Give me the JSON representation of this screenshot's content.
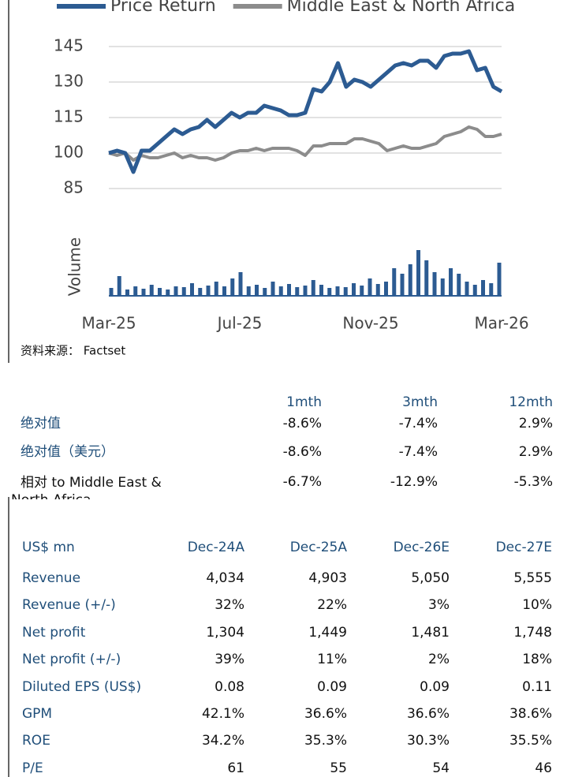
{
  "chart_data": [
    {
      "type": "line",
      "categories": [
        "Mar-25",
        null,
        null,
        null,
        null,
        null,
        null,
        null,
        null,
        null,
        null,
        null,
        null,
        null,
        null,
        null,
        "Jul-25",
        null,
        null,
        null,
        null,
        null,
        null,
        null,
        null,
        null,
        null,
        null,
        null,
        null,
        null,
        null,
        "Nov-25",
        null,
        null,
        null,
        null,
        null,
        null,
        null,
        null,
        null,
        null,
        null,
        null,
        null,
        null,
        null,
        "Mar-26"
      ],
      "series": [
        {
          "name": "Price Return",
          "color": "#2c5b92",
          "values": [
            100,
            101,
            100,
            92,
            101,
            101,
            104,
            107,
            110,
            108,
            110,
            111,
            114,
            111,
            114,
            117,
            115,
            117,
            117,
            120,
            119,
            118,
            116,
            116,
            117,
            127,
            126,
            130,
            138,
            128,
            131,
            130,
            128,
            131,
            134,
            137,
            138,
            137,
            139,
            139,
            136,
            141,
            142,
            142,
            143,
            135,
            136,
            128,
            126
          ]
        },
        {
          "name": "Middle East & North Africa",
          "color": "#8c8c8c",
          "values": [
            100,
            99,
            100,
            97,
            99,
            98,
            98,
            99,
            100,
            98,
            99,
            98,
            98,
            97,
            98,
            100,
            101,
            101,
            102,
            101,
            102,
            102,
            102,
            101,
            99,
            103,
            103,
            104,
            104,
            104,
            106,
            106,
            105,
            104,
            101,
            102,
            103,
            102,
            102,
            103,
            104,
            107,
            108,
            109,
            111,
            110,
            107,
            107,
            108
          ]
        }
      ],
      "ylim": [
        85,
        145
      ],
      "yticks": [
        85,
        100,
        115,
        130,
        145
      ],
      "grid": true
    },
    {
      "type": "bar",
      "ylabel": "Volume",
      "color": "#2c5b92",
      "values": [
        10,
        25,
        8,
        12,
        9,
        14,
        10,
        8,
        12,
        11,
        16,
        10,
        13,
        18,
        12,
        22,
        30,
        12,
        14,
        10,
        18,
        12,
        15,
        11,
        13,
        20,
        14,
        10,
        12,
        11,
        16,
        13,
        22,
        15,
        18,
        35,
        28,
        40,
        58,
        45,
        30,
        22,
        35,
        28,
        18,
        14,
        20,
        16,
        42
      ],
      "ylim": [
        0,
        60
      ]
    }
  ],
  "source": "资料来源： Factset",
  "performance": {
    "headers": [
      "1mth",
      "3mth",
      "12mth"
    ],
    "rows": [
      {
        "label": "绝对值",
        "values": [
          "-8.6%",
          "-7.4%",
          "2.9%"
        ]
      },
      {
        "label": "绝对值（美元）",
        "values": [
          "-8.6%",
          "-7.4%",
          "2.9%"
        ]
      },
      {
        "label": "相对 to Middle East & North Africa",
        "values": [
          "-6.7%",
          "-12.9%",
          "-5.3%"
        ]
      }
    ]
  },
  "financials": {
    "headers": [
      "US$ mn",
      "Dec-24A",
      "Dec-25A",
      "Dec-26E",
      "Dec-27E"
    ],
    "rows": [
      [
        "Revenue",
        "4,034",
        "4,903",
        "5,050",
        "5,555"
      ],
      [
        "Revenue (+/-)",
        "32%",
        "22%",
        "3%",
        "10%"
      ],
      [
        "Net profit",
        "1,304",
        "1,449",
        "1,481",
        "1,748"
      ],
      [
        "Net profit (+/-)",
        "39%",
        "11%",
        "2%",
        "18%"
      ],
      [
        "Diluted EPS (US$)",
        "0.08",
        "0.09",
        "0.09",
        "0.11"
      ],
      [
        "GPM",
        "42.1%",
        "36.6%",
        "36.6%",
        "38.6%"
      ],
      [
        "ROE",
        "34.2%",
        "35.3%",
        "30.3%",
        "35.5%"
      ],
      [
        "P/E",
        "61",
        "55",
        "54",
        "46"
      ]
    ]
  }
}
